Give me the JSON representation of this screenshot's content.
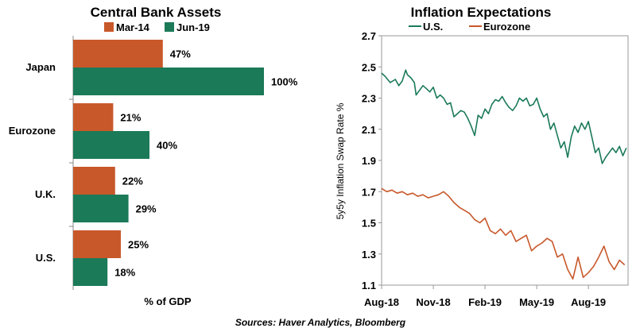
{
  "chart_data": [
    {
      "type": "bar",
      "orientation": "horizontal",
      "title": "Central Bank Assets",
      "xlabel": "% of GDP",
      "categories": [
        "Japan",
        "Eurozone",
        "U.K.",
        "U.S."
      ],
      "series": [
        {
          "name": "Mar-14",
          "color": "#c8582a",
          "values": [
            47,
            21,
            22,
            25
          ],
          "labels": [
            "47%",
            "21%",
            "22%",
            "25%"
          ]
        },
        {
          "name": "Jun-19",
          "color": "#1b7a58",
          "values": [
            100,
            40,
            29,
            18
          ],
          "labels": [
            "100%",
            "40%",
            "29%",
            "18%"
          ]
        }
      ],
      "xlim": [
        0,
        100
      ],
      "legend": "top"
    },
    {
      "type": "line",
      "title": "Inflation Expectations",
      "ylabel": "5y5y Inflation Swap Rate %",
      "ylim": [
        1.1,
        2.7
      ],
      "yticks": [
        "1.1",
        "1.3",
        "1.5",
        "1.7",
        "1.9",
        "2.1",
        "2.3",
        "2.5",
        "2.7"
      ],
      "xticks": [
        "Aug-18",
        "Nov-18",
        "Feb-19",
        "May-19",
        "Aug-19"
      ],
      "x_months": [
        0,
        3,
        6,
        9,
        12
      ],
      "xlim_months": [
        0,
        14.3
      ],
      "legend": "top",
      "series": [
        {
          "name": "U.S.",
          "color": "#1b7a58",
          "x": [
            0,
            0.2,
            0.5,
            0.8,
            1,
            1.2,
            1.4,
            1.5,
            1.7,
            1.9,
            2,
            2.2,
            2.4,
            2.6,
            2.8,
            3,
            3.2,
            3.4,
            3.6,
            3.8,
            4,
            4.2,
            4.4,
            4.6,
            4.8,
            5,
            5.2,
            5.4,
            5.6,
            5.8,
            6,
            6.2,
            6.4,
            6.6,
            6.8,
            7,
            7.2,
            7.4,
            7.6,
            7.8,
            8,
            8.2,
            8.4,
            8.6,
            8.8,
            9,
            9.2,
            9.4,
            9.6,
            9.8,
            10,
            10.2,
            10.4,
            10.6,
            10.8,
            11,
            11.2,
            11.4,
            11.6,
            11.8,
            12,
            12.2,
            12.4,
            12.6,
            12.8,
            13,
            13.2,
            13.4,
            13.6,
            13.8,
            14,
            14.2
          ],
          "y": [
            2.46,
            2.44,
            2.4,
            2.42,
            2.38,
            2.41,
            2.48,
            2.45,
            2.43,
            2.4,
            2.32,
            2.35,
            2.38,
            2.36,
            2.34,
            2.37,
            2.3,
            2.32,
            2.3,
            2.26,
            2.27,
            2.18,
            2.2,
            2.22,
            2.21,
            2.17,
            2.12,
            2.06,
            2.19,
            2.17,
            2.23,
            2.2,
            2.26,
            2.29,
            2.28,
            2.31,
            2.27,
            2.24,
            2.22,
            2.25,
            2.3,
            2.28,
            2.3,
            2.25,
            2.26,
            2.3,
            2.23,
            2.18,
            2.2,
            2.1,
            2.14,
            2.06,
            1.98,
            2.02,
            1.92,
            2.05,
            2.12,
            2.08,
            2.14,
            2.1,
            2.15,
            2.05,
            1.95,
            1.98,
            1.88,
            1.92,
            1.95,
            1.98,
            1.95,
            1.99,
            1.93,
            1.98
          ]
        },
        {
          "name": "Eurozone",
          "color": "#c8582a",
          "x": [
            0,
            0.3,
            0.6,
            0.9,
            1.2,
            1.5,
            1.8,
            2.1,
            2.4,
            2.7,
            3,
            3.3,
            3.6,
            3.9,
            4.2,
            4.5,
            4.8,
            5.1,
            5.4,
            5.7,
            6,
            6.3,
            6.6,
            6.9,
            7.2,
            7.5,
            7.8,
            8.1,
            8.4,
            8.7,
            9,
            9.3,
            9.6,
            9.9,
            10.2,
            10.5,
            10.8,
            11.1,
            11.4,
            11.7,
            12,
            12.3,
            12.6,
            12.9,
            13.2,
            13.5,
            13.8,
            14.1
          ],
          "y": [
            1.72,
            1.7,
            1.71,
            1.69,
            1.7,
            1.68,
            1.69,
            1.67,
            1.68,
            1.66,
            1.67,
            1.68,
            1.7,
            1.67,
            1.63,
            1.6,
            1.58,
            1.56,
            1.52,
            1.5,
            1.53,
            1.45,
            1.43,
            1.46,
            1.42,
            1.45,
            1.38,
            1.4,
            1.42,
            1.32,
            1.35,
            1.37,
            1.4,
            1.38,
            1.28,
            1.3,
            1.2,
            1.14,
            1.28,
            1.15,
            1.18,
            1.22,
            1.28,
            1.35,
            1.25,
            1.2,
            1.26,
            1.23
          ]
        }
      ]
    }
  ],
  "footer": {
    "source": "Sources: Haver Analytics, Bloomberg"
  }
}
